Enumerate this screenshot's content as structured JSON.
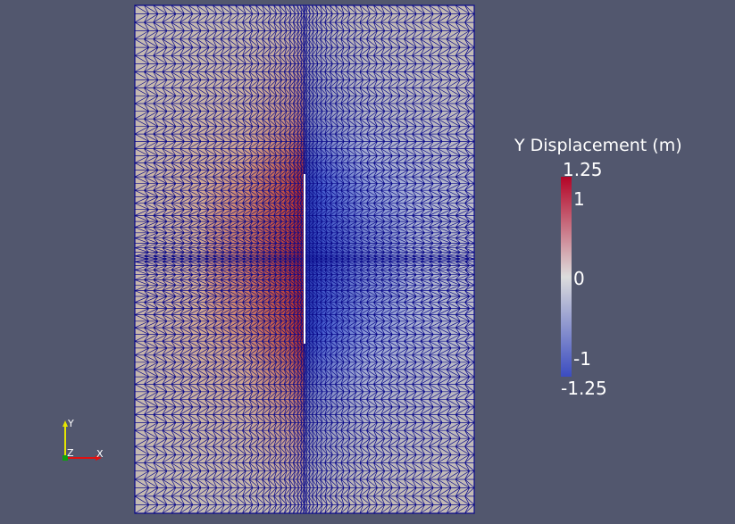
{
  "colorbar": {
    "title": "Y Displacement (m)",
    "ticks": {
      "max": "1.25",
      "pos1": "1",
      "zero": "0",
      "neg1": "-1",
      "min": "-1.25"
    },
    "range": [
      -1.25,
      1.25
    ],
    "colormap": [
      "#3b4cc0",
      "#dddddd",
      "#b40426"
    ]
  },
  "axes": {
    "x_label": "X",
    "y_label": "Y",
    "z_label": "Z"
  },
  "colors": {
    "background": "#52576e",
    "mesh_edges": "#0a0a8a",
    "crack": "#ffffff"
  }
}
